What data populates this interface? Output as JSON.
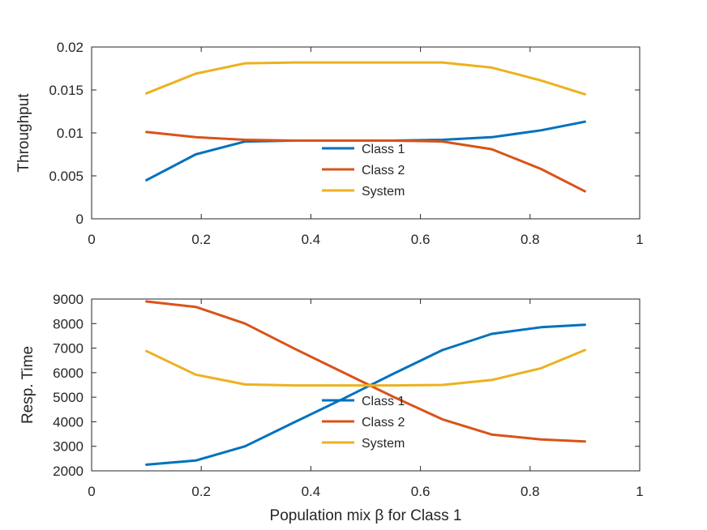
{
  "chart_data": [
    {
      "type": "line",
      "ylabel": "Throughput",
      "xlabel": "",
      "xlim": [
        0,
        1
      ],
      "ylim": [
        0,
        0.02
      ],
      "xticks": [
        "0",
        "0.2",
        "0.4",
        "0.6",
        "0.8",
        "1"
      ],
      "yticks": [
        "0",
        "0.005",
        "0.01",
        "0.015",
        "0.02"
      ],
      "x": [
        0.1,
        0.19,
        0.28,
        0.37,
        0.46,
        0.55,
        0.64,
        0.73,
        0.82,
        0.9
      ],
      "series": [
        {
          "name": "Class 1",
          "color": "#0072BD",
          "values": [
            0.0045,
            0.0075,
            0.009,
            0.0091,
            0.0091,
            0.0091,
            0.0092,
            0.0095,
            0.0103,
            0.0113
          ]
        },
        {
          "name": "Class 2",
          "color": "#D95319",
          "values": [
            0.0101,
            0.0095,
            0.0092,
            0.0091,
            0.0091,
            0.0091,
            0.009,
            0.0081,
            0.0058,
            0.0032
          ]
        },
        {
          "name": "System",
          "color": "#EDB120",
          "values": [
            0.0146,
            0.0169,
            0.0181,
            0.0182,
            0.0182,
            0.0182,
            0.0182,
            0.0176,
            0.0161,
            0.0145
          ]
        }
      ],
      "legend": "center"
    },
    {
      "type": "line",
      "ylabel": "Resp. Time",
      "xlabel": "Population mix β for Class 1",
      "xlim": [
        0,
        1
      ],
      "ylim": [
        2000,
        9000
      ],
      "xticks": [
        "0",
        "0.2",
        "0.4",
        "0.6",
        "0.8",
        "1"
      ],
      "yticks": [
        "2000",
        "3000",
        "4000",
        "5000",
        "6000",
        "7000",
        "8000",
        "9000"
      ],
      "x": [
        0.1,
        0.19,
        0.28,
        0.37,
        0.46,
        0.55,
        0.64,
        0.73,
        0.82,
        0.9
      ],
      "series": [
        {
          "name": "Class 1",
          "color": "#0072BD",
          "values": [
            2250,
            2420,
            3000,
            3980,
            4950,
            5950,
            6920,
            7580,
            7850,
            7950
          ]
        },
        {
          "name": "Class 2",
          "color": "#D95319",
          "values": [
            8900,
            8680,
            8000,
            6980,
            6000,
            5020,
            4100,
            3480,
            3280,
            3200
          ]
        },
        {
          "name": "System",
          "color": "#EDB120",
          "values": [
            6880,
            5920,
            5520,
            5480,
            5480,
            5480,
            5500,
            5700,
            6180,
            6920
          ]
        }
      ],
      "legend": "center"
    }
  ]
}
